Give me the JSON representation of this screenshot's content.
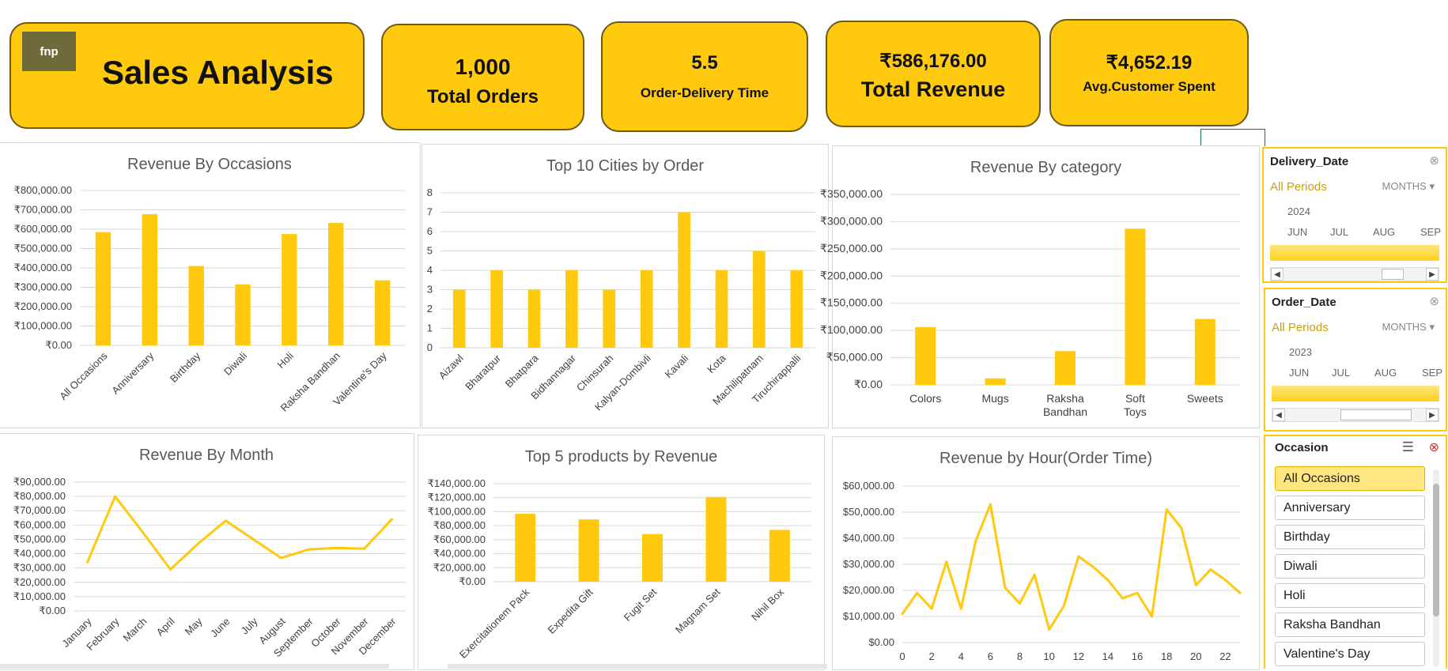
{
  "header": {
    "logo_text": "fnp",
    "title": "Sales Analysis"
  },
  "kpis": [
    {
      "value": "1,000",
      "label": "Total Orders"
    },
    {
      "value": "5.5",
      "label": "Order-Delivery Time"
    },
    {
      "value": "₹586,176.00",
      "label": "Total Revenue"
    },
    {
      "value": "₹4,652.19",
      "label": "Avg.Customer Spent"
    }
  ],
  "colors": {
    "accent": "#ffc90e",
    "border": "#6b5a1e",
    "bar": "#ffc90e"
  },
  "icons": [
    "clear-filter-icon",
    "multi-select-icon",
    "chevron-left-icon",
    "chevron-right-icon",
    "dropdown-icon"
  ],
  "slicers": {
    "delivery": {
      "title": "Delivery_Date",
      "all_periods": "All Periods",
      "granularity": "MONTHS",
      "year": "2024",
      "months": [
        "JUN",
        "JUL",
        "AUG",
        "SEP"
      ]
    },
    "order": {
      "title": "Order_Date",
      "all_periods": "All Periods",
      "granularity": "MONTHS",
      "year": "2023",
      "months": [
        "JUN",
        "JUL",
        "AUG",
        "SEP"
      ]
    },
    "occasion": {
      "title": "Occasion",
      "items": [
        "All Occasions",
        "Anniversary",
        "Birthday",
        "Diwali",
        "Holi",
        "Raksha Bandhan",
        "Valentine's Day"
      ],
      "selected": "All Occasions"
    }
  },
  "chart_data": [
    {
      "id": "occasions",
      "type": "bar",
      "title": "Revenue By Occasions",
      "categories": [
        "All Occasions",
        "Anniversary",
        "Birthday",
        "Diwali",
        "Holi",
        "Raksha Bandhan",
        "Valentine's Day"
      ],
      "values": [
        585000,
        678000,
        410000,
        315000,
        575000,
        632000,
        336000
      ],
      "ylim": [
        0,
        800000
      ],
      "ticks": [
        "₹0.00",
        "₹100,000.00",
        "₹200,000.00",
        "₹300,000.00",
        "₹400,000.00",
        "₹500,000.00",
        "₹600,000.00",
        "₹700,000.00",
        "₹800,000.00"
      ]
    },
    {
      "id": "cities",
      "type": "bar",
      "title": "Top 10 Cities by Order",
      "categories": [
        "Aizawl",
        "Bharatpur",
        "Bhatpara",
        "Bidhannagar",
        "Chinsurah",
        "Kalyan-Dombivli",
        "Kavali",
        "Kota",
        "Machilipatnam",
        "Tiruchirappalli"
      ],
      "values": [
        3,
        4,
        3,
        4,
        3,
        4,
        7,
        4,
        5,
        4
      ],
      "ylim": [
        0,
        8
      ],
      "ticks": [
        "0",
        "1",
        "2",
        "3",
        "4",
        "5",
        "6",
        "7",
        "8"
      ]
    },
    {
      "id": "category",
      "type": "bar",
      "title": "Revenue By category",
      "categories": [
        "Colors",
        "Mugs",
        "Raksha Bandhan",
        "Soft Toys",
        "Sweets"
      ],
      "values": [
        106000,
        12000,
        62000,
        287000,
        121000
      ],
      "ylim": [
        0,
        350000
      ],
      "ticks": [
        "₹0.00",
        "₹50,000.00",
        "₹100,000.00",
        "₹150,000.00",
        "₹200,000.00",
        "₹250,000.00",
        "₹300,000.00",
        "₹350,000.00"
      ]
    },
    {
      "id": "month",
      "type": "line",
      "title": "Revenue By Month",
      "categories": [
        "January",
        "February",
        "March",
        "April",
        "May",
        "June",
        "July",
        "August",
        "September",
        "October",
        "November",
        "December"
      ],
      "values": [
        34000,
        80000,
        55000,
        29000,
        47000,
        63000,
        50000,
        37000,
        43000,
        44000,
        43500,
        64000
      ],
      "ylim": [
        0,
        90000
      ],
      "ticks": [
        "₹0.00",
        "₹10,000.00",
        "₹20,000.00",
        "₹30,000.00",
        "₹40,000.00",
        "₹50,000.00",
        "₹60,000.00",
        "₹70,000.00",
        "₹80,000.00",
        "₹90,000.00"
      ]
    },
    {
      "id": "products",
      "type": "bar",
      "title": "Top 5 products by Revenue",
      "categories": [
        "Exercitationem Pack",
        "Expedita Gift",
        "Fugit Set",
        "Magnam Set",
        "Nihil Box"
      ],
      "values": [
        97000,
        89000,
        68000,
        121000,
        74000
      ],
      "ylim": [
        0,
        140000
      ],
      "ticks": [
        "₹0.00",
        "₹20,000.00",
        "₹40,000.00",
        "₹60,000.00",
        "₹80,000.00",
        "₹100,000.00",
        "₹120,000.00",
        "₹140,000.00"
      ]
    },
    {
      "id": "hour",
      "type": "line",
      "title": "Revenue by Hour(Order Time)",
      "x": [
        0,
        1,
        2,
        3,
        4,
        5,
        6,
        7,
        8,
        9,
        10,
        11,
        12,
        13,
        14,
        15,
        16,
        17,
        18,
        19,
        20,
        21,
        22,
        23
      ],
      "values": [
        11000,
        19000,
        13000,
        31000,
        13000,
        39000,
        53000,
        21000,
        15000,
        26000,
        5000,
        14000,
        33000,
        29000,
        24000,
        17000,
        19000,
        10000,
        51000,
        44000,
        22000,
        28000,
        24000,
        19000
      ],
      "ylim": [
        0,
        60000
      ],
      "ticks": [
        "$0.00",
        "$10,000.00",
        "$20,000.00",
        "$30,000.00",
        "$40,000.00",
        "$50,000.00",
        "$60,000.00"
      ],
      "xticks": [
        "0",
        "2",
        "4",
        "6",
        "8",
        "10",
        "12",
        "14",
        "16",
        "18",
        "20",
        "22"
      ]
    }
  ]
}
